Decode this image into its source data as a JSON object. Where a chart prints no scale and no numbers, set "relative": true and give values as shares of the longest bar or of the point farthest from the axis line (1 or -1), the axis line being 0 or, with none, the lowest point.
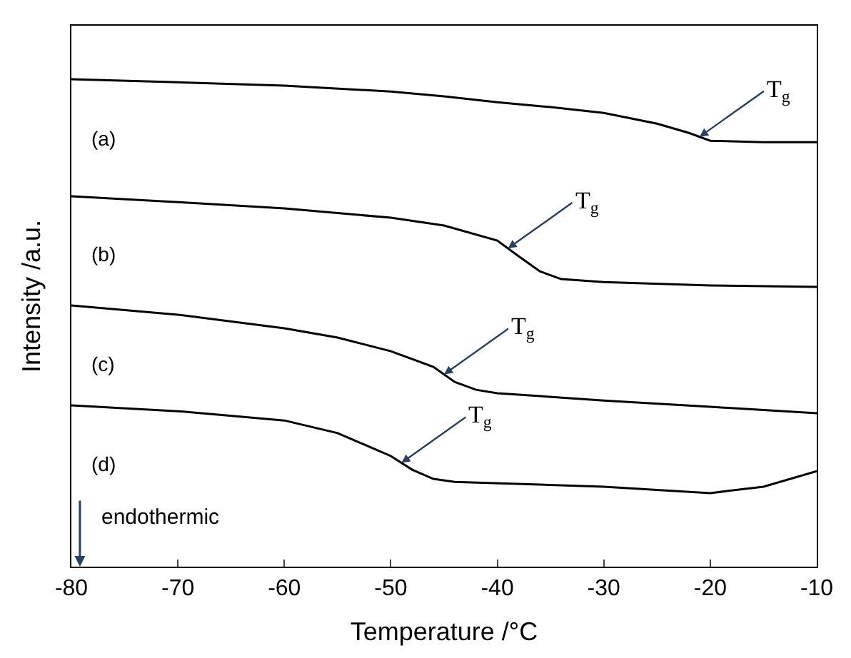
{
  "chart_data": {
    "type": "line",
    "relative": true,
    "xlabel": "Temperature /°C",
    "ylabel": "Intensity /a.u.",
    "xlim": [
      -80,
      -10
    ],
    "xticks": [
      -80,
      -70,
      -60,
      -50,
      -40,
      -30,
      -20,
      -10
    ],
    "marker": "none",
    "line_style": "solid",
    "series": [
      {
        "color": "#000000",
        "x": [
          -80,
          -70,
          -60,
          -50,
          -45,
          -40,
          -35,
          -30,
          -25,
          -22,
          -20,
          -15,
          -10
        ],
        "values": [
          1.0,
          0.994,
          0.987,
          0.975,
          0.965,
          0.953,
          0.943,
          0.931,
          0.909,
          0.89,
          0.874,
          0.871,
          0.871
        ]
      },
      {
        "color": "#000000",
        "x": [
          -80,
          -70,
          -60,
          -50,
          -45,
          -40,
          -38,
          -36,
          -34,
          -30,
          -20,
          -10
        ],
        "values": [
          0.76,
          0.748,
          0.735,
          0.716,
          0.7,
          0.669,
          0.637,
          0.606,
          0.59,
          0.584,
          0.577,
          0.574
        ]
      },
      {
        "color": "#000000",
        "x": [
          -80,
          -70,
          -60,
          -55,
          -50,
          -46,
          -44,
          -42,
          -40,
          -30,
          -20,
          -10
        ],
        "values": [
          0.536,
          0.517,
          0.489,
          0.47,
          0.442,
          0.41,
          0.379,
          0.363,
          0.356,
          0.341,
          0.328,
          0.315
        ]
      },
      {
        "color": "#000000",
        "x": [
          -80,
          -70,
          -60,
          -55,
          -52,
          -50,
          -48,
          -46,
          -44,
          -30,
          -20,
          -15,
          -10
        ],
        "values": [
          0.331,
          0.319,
          0.3,
          0.274,
          0.246,
          0.227,
          0.199,
          0.18,
          0.174,
          0.164,
          0.151,
          0.164,
          0.196
        ]
      }
    ],
    "annotations": [
      "(a)",
      "(b)",
      "(c)",
      "(d)",
      "T$_{g}$",
      "T$_{g}$",
      "T$_{g}$",
      "T$_{g}$",
      "endothermic"
    ]
  }
}
